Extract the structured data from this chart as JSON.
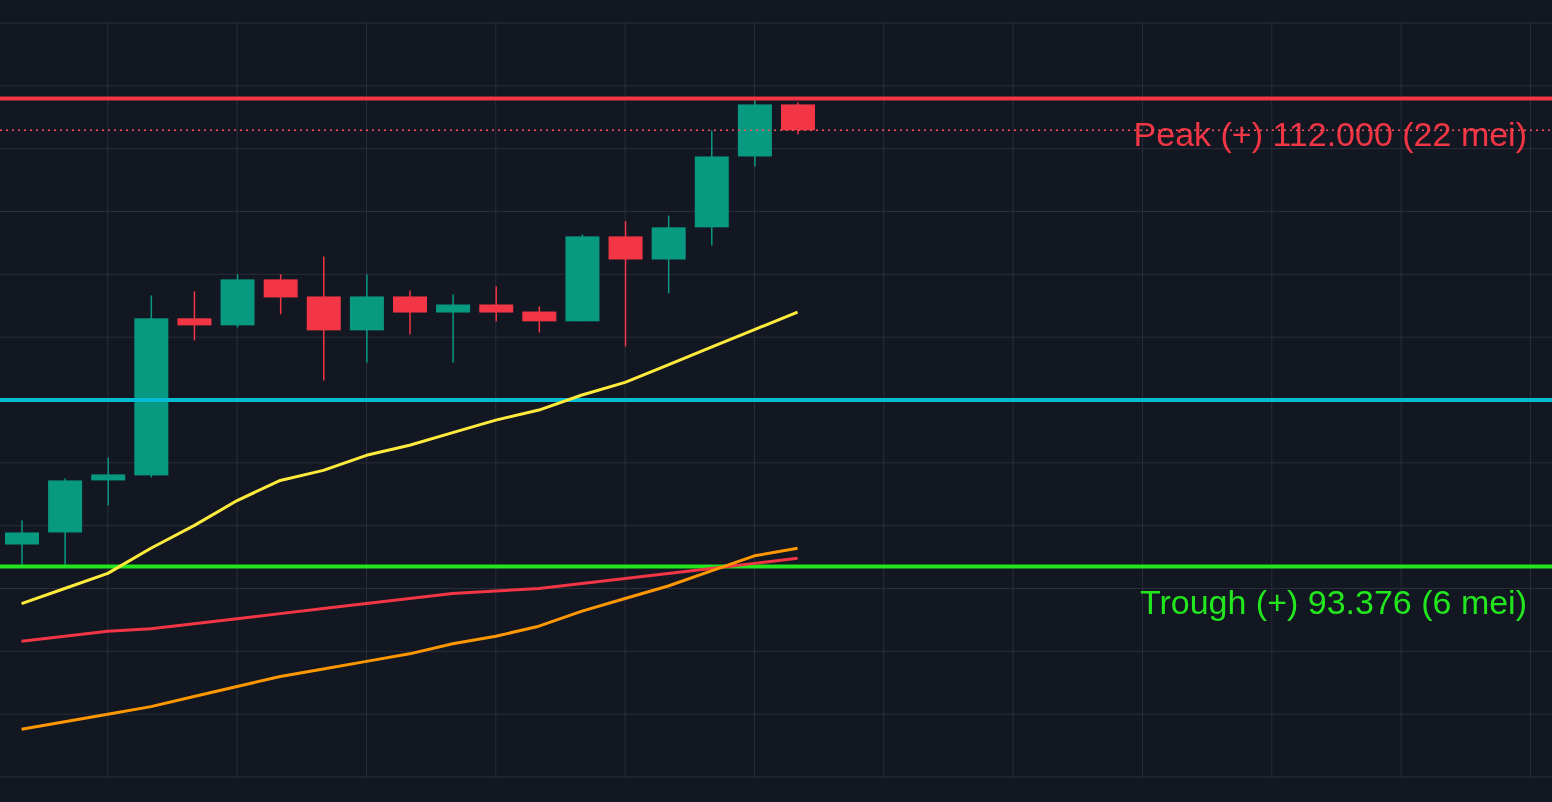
{
  "chart_data": {
    "type": "candlestick",
    "categories": [
      null,
      null,
      null,
      null,
      null,
      null,
      null,
      null,
      null,
      null,
      null,
      null,
      null,
      null,
      null,
      null,
      null,
      null,
      null,
      null,
      null,
      null,
      null,
      null,
      null,
      null,
      null,
      null,
      null,
      null,
      null,
      null,
      null,
      null,
      null,
      null
    ],
    "ohlc": [
      [
        94.25,
        95.21,
        93.376,
        94.73
      ],
      [
        94.73,
        96.88,
        93.45,
        96.8
      ],
      [
        96.8,
        97.71,
        95.81,
        97.04
      ],
      [
        97.0,
        104.16,
        96.92,
        103.25
      ],
      [
        103.25,
        104.32,
        102.37,
        102.97
      ],
      [
        102.97,
        105.0,
        102.89,
        104.8
      ],
      [
        104.8,
        105.0,
        103.41,
        104.08
      ],
      [
        104.12,
        105.71,
        100.78,
        102.77
      ],
      [
        102.77,
        105.0,
        101.49,
        104.12
      ],
      [
        104.12,
        104.36,
        102.61,
        103.48
      ],
      [
        103.48,
        104.2,
        101.49,
        103.8
      ],
      [
        103.8,
        104.52,
        103.13,
        103.48
      ],
      [
        103.52,
        103.72,
        102.69,
        103.13
      ],
      [
        103.13,
        106.59,
        103.13,
        106.51
      ],
      [
        106.51,
        107.11,
        102.13,
        105.59
      ],
      [
        105.59,
        107.34,
        104.24,
        106.87
      ],
      [
        106.87,
        110.73,
        106.15,
        109.69
      ],
      [
        109.69,
        112.0,
        109.29,
        111.76
      ],
      [
        111.76,
        111.84,
        110.57,
        110.73
      ],
      null,
      null,
      null,
      null,
      null,
      null,
      null,
      null,
      null,
      null,
      null,
      null,
      null,
      null,
      null,
      null,
      null
    ],
    "colors": [
      "#089981",
      "#089981",
      "#089981",
      "#089981",
      "#f23645",
      "#089981",
      "#f23645",
      "#f23645",
      "#089981",
      "#f23645",
      "#089981",
      "#f23645",
      "#f23645",
      "#089981",
      "#f23645",
      "#089981",
      "#089981",
      "#089981",
      "#f23645",
      null,
      null,
      null,
      null,
      null,
      null,
      null,
      null,
      null,
      null,
      null,
      null,
      null,
      null,
      null,
      null,
      null
    ],
    "series": [
      {
        "type": "line",
        "color": "#ffeb3b",
        "values": [
          91.9,
          92.5,
          93.1,
          94.1,
          95.0,
          96.0,
          96.8,
          97.2,
          97.8,
          98.2,
          98.7,
          99.2,
          99.6,
          100.2,
          100.7,
          101.4,
          102.1,
          102.8,
          103.5,
          null,
          null,
          null,
          null,
          null,
          null,
          null,
          null,
          null,
          null,
          null,
          null,
          null,
          null,
          null,
          null,
          null
        ]
      },
      {
        "type": "line",
        "color": "#f23645",
        "values": [
          90.4,
          90.6,
          90.8,
          90.9,
          91.1,
          91.3,
          91.5,
          91.7,
          91.9,
          92.1,
          92.3,
          92.4,
          92.5,
          92.7,
          92.9,
          93.1,
          93.3,
          93.5,
          93.7,
          null,
          null,
          null,
          null,
          null,
          null,
          null,
          null,
          null,
          null,
          null,
          null,
          null,
          null,
          null,
          null,
          null
        ]
      },
      {
        "type": "line",
        "color": "#ff9800",
        "values": [
          86.9,
          87.2,
          87.5,
          87.8,
          88.2,
          88.6,
          89.0,
          89.3,
          89.6,
          89.9,
          90.3,
          90.6,
          91.0,
          91.6,
          92.1,
          92.6,
          93.2,
          93.8,
          94.1,
          null,
          null,
          null,
          null,
          null,
          null,
          null,
          null,
          null,
          null,
          null,
          null,
          null,
          null,
          null,
          null,
          null
        ]
      }
    ],
    "ylim": [
      85,
      115
    ],
    "yticks": [
      {
        "value": 85,
        "label": null
      },
      {
        "value": 87.5,
        "label": null
      },
      {
        "value": 90,
        "label": null
      },
      {
        "value": 92.5,
        "label": null
      },
      {
        "value": 95,
        "label": null
      },
      {
        "value": 97.5,
        "label": null
      },
      {
        "value": 100,
        "label": null
      },
      {
        "value": 102.5,
        "label": null
      },
      {
        "value": 105,
        "label": null
      },
      {
        "value": 107.5,
        "label": null
      },
      {
        "value": 110,
        "label": null
      },
      {
        "value": 112.5,
        "label": null
      },
      {
        "value": 115,
        "label": null
      }
    ],
    "ref_lines": [
      {
        "axis": "y",
        "value": 112.0,
        "label": "Peak (+) 112.000 (22 mei)",
        "color": "#f23645",
        "line_style": "solid"
      },
      {
        "axis": "y",
        "value": 110.73,
        "label": null,
        "color": "#f7525f",
        "line_style": "dotted"
      },
      {
        "axis": "y",
        "value": 100,
        "label": null,
        "color": "#00bcd4",
        "line_style": "solid"
      },
      {
        "axis": "y",
        "value": 93.376,
        "label": "Trough (+) 93.376 (6 mei)",
        "color": "#22e61e",
        "line_style": "solid"
      }
    ],
    "grid": true,
    "tick_labels": false,
    "marker": "none",
    "line_style": "solid"
  }
}
